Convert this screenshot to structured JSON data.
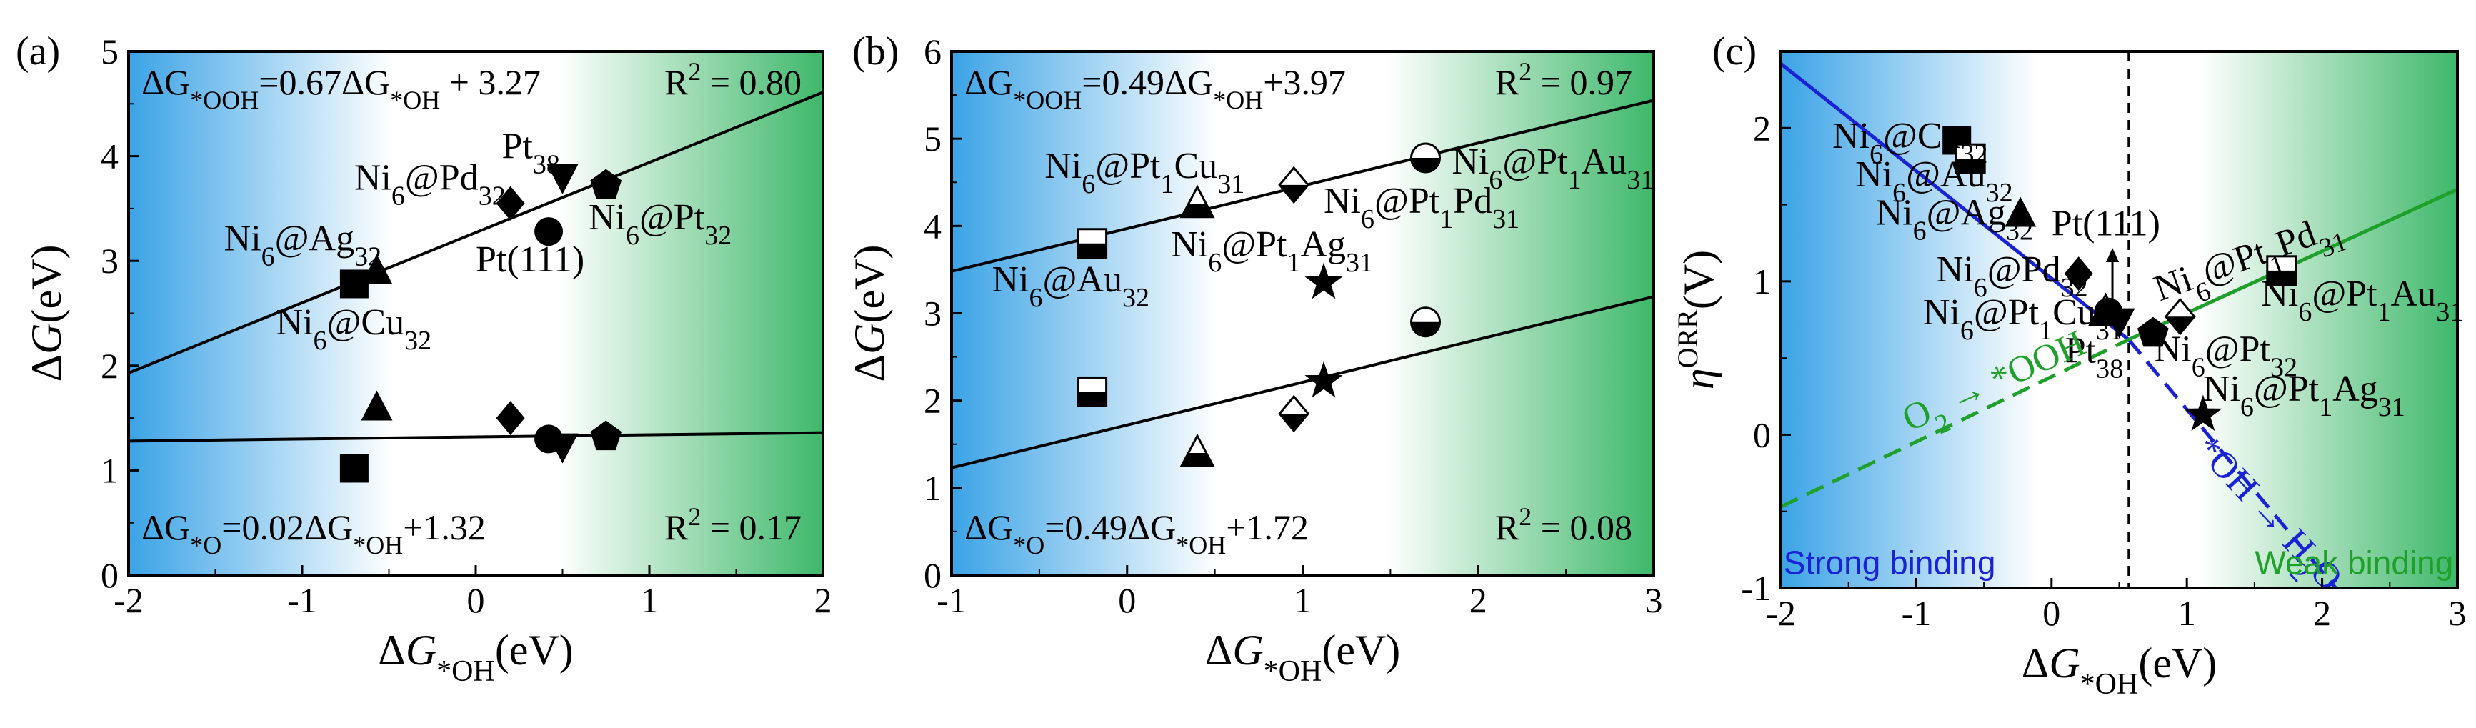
{
  "colors": {
    "blue": "#3ba3e6",
    "green": "#3eb86a",
    "blue_line": "#1a22d6",
    "green_line": "#1fa02a"
  },
  "chart_data": [
    {
      "id": "a",
      "panel_label": "(a)",
      "type": "scatter",
      "xlim": [
        -2,
        2
      ],
      "ylim": [
        0,
        5
      ],
      "xticks": [
        -2,
        -1,
        0,
        1,
        2
      ],
      "yticks": [
        0,
        1,
        2,
        3,
        4,
        5
      ],
      "xlabel": {
        "main": "ΔG",
        "sub": "*OH",
        "unit": "(eV)"
      },
      "ylabel": {
        "main": "ΔG",
        "unit": "(eV)"
      },
      "equations": [
        {
          "pre": "ΔG",
          "sub1": "*OOH",
          "mid": "=0.67ΔG",
          "sub2": "*OH",
          "post": " + 3.27",
          "r2": "R",
          "r2sup": "2",
          "r2val": " = 0.80"
        },
        {
          "pre": "ΔG",
          "sub1": "*O",
          "mid": "=0.02ΔG",
          "sub2": "*OH",
          "post": "+1.32",
          "r2": "R",
          "r2sup": "2",
          "r2val": " = 0.17"
        }
      ],
      "fits": [
        {
          "slope": 0.67,
          "intercept": 3.27
        },
        {
          "slope": 0.02,
          "intercept": 1.32
        }
      ],
      "series": [
        {
          "name": "Ni6@Cu32",
          "marker": "square",
          "points": [
            [
              -0.7,
              2.78
            ],
            [
              -0.7,
              1.02
            ]
          ]
        },
        {
          "name": "Ni6@Ag32",
          "marker": "triangle",
          "points": [
            [
              -0.57,
              2.9
            ],
            [
              -0.57,
              1.6
            ]
          ]
        },
        {
          "name": "Ni6@Pd32",
          "marker": "diamond",
          "points": [
            [
              0.2,
              3.55
            ],
            [
              0.2,
              1.5
            ]
          ]
        },
        {
          "name": "Pt(111)",
          "marker": "circle",
          "points": [
            [
              0.42,
              3.28
            ],
            [
              0.42,
              1.3
            ]
          ]
        },
        {
          "name": "Pt38",
          "marker": "triangle-down",
          "points": [
            [
              0.5,
              3.8
            ],
            [
              0.5,
              1.23
            ]
          ]
        },
        {
          "name": "Ni6@Pt32",
          "marker": "pentagon",
          "points": [
            [
              0.75,
              3.72
            ],
            [
              0.75,
              1.32
            ]
          ]
        }
      ],
      "point_labels": [
        {
          "base": "Ni",
          "parts": [
            [
              "6",
              1
            ],
            [
              "@Ag",
              0
            ],
            [
              "32",
              1
            ]
          ],
          "at": [
            -1.45,
            3.1
          ]
        },
        {
          "base": "Ni",
          "parts": [
            [
              "6",
              1
            ],
            [
              "@Cu",
              0
            ],
            [
              "32",
              1
            ]
          ],
          "at": [
            -1.15,
            2.3
          ]
        },
        {
          "base": "Ni",
          "parts": [
            [
              "6",
              1
            ],
            [
              "@Pd",
              0
            ],
            [
              "32",
              1
            ]
          ],
          "at": [
            -0.7,
            3.68
          ]
        },
        {
          "base": "Pt",
          "parts": [
            [
              "38",
              1
            ]
          ],
          "at": [
            0.15,
            3.98
          ]
        },
        {
          "base": "Pt(111)",
          "parts": [],
          "at": [
            0.0,
            2.9
          ]
        },
        {
          "base": "Ni",
          "parts": [
            [
              "6",
              1
            ],
            [
              "@Pt",
              0
            ],
            [
              "32",
              1
            ]
          ],
          "at": [
            0.65,
            3.3
          ]
        }
      ]
    },
    {
      "id": "b",
      "panel_label": "(b)",
      "type": "scatter",
      "xlim": [
        -1,
        3
      ],
      "ylim": [
        0,
        6
      ],
      "xticks": [
        -1,
        0,
        1,
        2,
        3
      ],
      "yticks": [
        0,
        1,
        2,
        3,
        4,
        5,
        6
      ],
      "xlabel": {
        "main": "ΔG",
        "sub": "*OH",
        "unit": "(eV)"
      },
      "ylabel": {
        "main": "ΔG",
        "unit": "(eV)"
      },
      "equations": [
        {
          "pre": "ΔG",
          "sub1": "*OOH",
          "mid": "=0.49ΔG",
          "sub2": "*OH",
          "post": "+3.97",
          "r2": "R",
          "r2sup": "2",
          "r2val": " = 0.97"
        },
        {
          "pre": "ΔG",
          "sub1": "*O",
          "mid": "=0.49ΔG",
          "sub2": "*OH",
          "post": "+1.72",
          "r2": "R",
          "r2sup": "2",
          "r2val": " = 0.08"
        }
      ],
      "fits": [
        {
          "slope": 0.49,
          "intercept": 3.97
        },
        {
          "slope": 0.49,
          "intercept": 1.72
        }
      ],
      "series": [
        {
          "name": "Ni6@Au32",
          "marker": "square-half",
          "points": [
            [
              -0.2,
              3.8
            ],
            [
              -0.2,
              2.1
            ]
          ]
        },
        {
          "name": "Ni6@Pt1Cu31",
          "marker": "triangle-half",
          "points": [
            [
              0.4,
              4.25
            ],
            [
              0.4,
              1.4
            ]
          ]
        },
        {
          "name": "Ni6@Pt1Ag31",
          "marker": "star",
          "points": [
            [
              1.12,
              3.35
            ],
            [
              1.12,
              2.22
            ]
          ]
        },
        {
          "name": "Ni6@Pt1Pd31",
          "marker": "diamond-half",
          "points": [
            [
              0.95,
              4.47
            ],
            [
              0.95,
              1.85
            ]
          ]
        },
        {
          "name": "Ni6@Pt1Au31",
          "marker": "circle-half",
          "points": [
            [
              1.7,
              4.78
            ],
            [
              1.7,
              2.9
            ]
          ]
        }
      ],
      "point_labels": [
        {
          "base": "Ni",
          "parts": [
            [
              "6",
              1
            ],
            [
              "@Pt",
              0
            ],
            [
              "1",
              1
            ],
            [
              "Cu",
              0
            ],
            [
              "31",
              1
            ]
          ],
          "at": [
            -0.47,
            4.55
          ]
        },
        {
          "base": "Ni",
          "parts": [
            [
              "6",
              1
            ],
            [
              "@Au",
              0
            ],
            [
              "32",
              1
            ]
          ],
          "at": [
            -0.77,
            3.25
          ]
        },
        {
          "base": "Ni",
          "parts": [
            [
              "6",
              1
            ],
            [
              "@Pt",
              0
            ],
            [
              "1",
              1
            ],
            [
              "Ag",
              0
            ],
            [
              "31",
              1
            ]
          ],
          "at": [
            0.25,
            3.65
          ]
        },
        {
          "base": "Ni",
          "parts": [
            [
              "6",
              1
            ],
            [
              "@Pt",
              0
            ],
            [
              "1",
              1
            ],
            [
              "Pd",
              0
            ],
            [
              "31",
              1
            ]
          ],
          "at": [
            1.12,
            4.15
          ]
        },
        {
          "base": "Ni",
          "parts": [
            [
              "6",
              1
            ],
            [
              "@Pt",
              0
            ],
            [
              "1",
              1
            ],
            [
              "Au",
              0
            ],
            [
              "31",
              1
            ]
          ],
          "at": [
            1.85,
            4.6
          ]
        }
      ]
    },
    {
      "id": "c",
      "panel_label": "(c)",
      "type": "scatter",
      "xlim": [
        -2,
        3
      ],
      "ylim": [
        -1,
        2.5
      ],
      "xticks": [
        -2,
        -1,
        0,
        1,
        2,
        3
      ],
      "yticks": [
        -1,
        0,
        1,
        2
      ],
      "xlabel": {
        "main": "ΔG",
        "sub": "*OH",
        "unit": "(eV)"
      },
      "ylabel": {
        "main": "η",
        "sup": "ORR",
        "unit": "(V)"
      },
      "vline_x": 0.57,
      "lines": [
        {
          "name": "*OH → H2O",
          "color": "blue",
          "points": [
            [
              -2.4,
              2.7
            ],
            [
              0.57,
              0.62
            ]
          ],
          "dash_points": [
            [
              0.57,
              0.62
            ],
            [
              2.1,
              -1.0
            ]
          ]
        },
        {
          "name": "O2 → *OOH",
          "color": "green",
          "points": [
            [
              0.57,
              0.62
            ],
            [
              3.0,
              1.6
            ]
          ],
          "dash_points": [
            [
              -2.0,
              -0.47
            ],
            [
              0.57,
              0.62
            ]
          ]
        }
      ],
      "series": [
        {
          "name": "Ni6@Cu32",
          "marker": "square",
          "points": [
            [
              -0.7,
              1.92
            ]
          ]
        },
        {
          "name": "Ni6@Au32",
          "marker": "square-half",
          "points": [
            [
              -0.6,
              1.8
            ]
          ]
        },
        {
          "name": "Ni6@Ag32",
          "marker": "triangle",
          "points": [
            [
              -0.23,
              1.44
            ]
          ]
        },
        {
          "name": "Ni6@Pd32",
          "marker": "diamond",
          "points": [
            [
              0.2,
              1.05
            ]
          ]
        },
        {
          "name": "Ni6@Pt1Cu31",
          "marker": "triangle-half",
          "points": [
            [
              0.4,
              0.8
            ]
          ]
        },
        {
          "name": "Pt38",
          "marker": "triangle-down",
          "points": [
            [
              0.5,
              0.74
            ]
          ]
        },
        {
          "name": "Pt(111)",
          "marker": "circle",
          "points": [
            [
              0.42,
              0.8
            ]
          ]
        },
        {
          "name": "Ni6@Pt32",
          "marker": "pentagon",
          "points": [
            [
              0.75,
              0.66
            ]
          ]
        },
        {
          "name": "Ni6@Pt1Pd31",
          "marker": "diamond-half",
          "points": [
            [
              0.95,
              0.77
            ]
          ]
        },
        {
          "name": "Ni6@Pt1Au31",
          "marker": "square-half",
          "points": [
            [
              1.7,
              1.07
            ]
          ]
        },
        {
          "name": "Ni6@Pt1Ag31",
          "marker": "star",
          "points": [
            [
              1.12,
              0.13
            ]
          ]
        }
      ],
      "point_labels": [
        {
          "base": "Ni",
          "parts": [
            [
              "6",
              1
            ],
            [
              "@Cu",
              0
            ],
            [
              "32",
              1
            ]
          ],
          "at": [
            -1.62,
            1.87
          ]
        },
        {
          "base": "Ni",
          "parts": [
            [
              "6",
              1
            ],
            [
              "@Au",
              0
            ],
            [
              "32",
              1
            ]
          ],
          "at": [
            -1.45,
            1.62
          ]
        },
        {
          "base": "Ni",
          "parts": [
            [
              "6",
              1
            ],
            [
              "@Ag",
              0
            ],
            [
              "32",
              1
            ]
          ],
          "at": [
            -1.3,
            1.37
          ]
        },
        {
          "base": "Pt(111)",
          "parts": [],
          "at": [
            0.0,
            1.3
          ]
        },
        {
          "base": "Ni",
          "parts": [
            [
              "6",
              1
            ],
            [
              "@Pd",
              0
            ],
            [
              "32",
              1
            ]
          ],
          "at": [
            -0.85,
            1.0
          ]
        },
        {
          "base": "Ni",
          "parts": [
            [
              "6",
              1
            ],
            [
              "@Pt",
              0
            ],
            [
              "1",
              1
            ],
            [
              "Cu",
              0
            ],
            [
              "31",
              1
            ]
          ],
          "at": [
            -0.95,
            0.72
          ]
        },
        {
          "base": "Pt",
          "parts": [
            [
              "38",
              1
            ]
          ],
          "at": [
            0.1,
            0.47
          ]
        },
        {
          "base": "Ni",
          "parts": [
            [
              "6",
              1
            ],
            [
              "@Pt",
              0
            ],
            [
              "32",
              1
            ]
          ],
          "at": [
            0.76,
            0.48
          ]
        },
        {
          "base": "Ni",
          "parts": [
            [
              "6",
              1
            ],
            [
              "@Pt",
              0
            ],
            [
              "1",
              1
            ],
            [
              "Ag",
              0
            ],
            [
              "31",
              1
            ]
          ],
          "at": [
            1.12,
            0.22
          ]
        },
        {
          "base": "Ni",
          "parts": [
            [
              "6",
              1
            ],
            [
              "@Pt",
              0
            ],
            [
              "1",
              1
            ],
            [
              "Au",
              0
            ],
            [
              "31",
              1
            ]
          ],
          "at": [
            1.55,
            0.84
          ]
        }
      ],
      "rotated_labels": [
        {
          "pre": "O",
          "sub": "2",
          "post": " → *OOH",
          "color": "green",
          "at": [
            -1.05,
            0.02
          ],
          "angle": -24
        },
        {
          "pre": "*OH → H",
          "sub": "2",
          "post": "O",
          "color": "blue",
          "at": [
            1.05,
            -0.1
          ],
          "angle": 47
        }
      ],
      "pt1pd31_label": {
        "base": "Ni",
        "parts": [
          [
            "6",
            1
          ],
          [
            "@Pt",
            0
          ],
          [
            "1",
            1
          ],
          [
            "Pd",
            0
          ],
          [
            "31",
            1
          ]
        ],
        "at": [
          0.8,
          0.87
        ],
        "angle": -20
      },
      "region_labels": [
        {
          "text": "Strong binding",
          "color": "blue_line",
          "at": [
            -1.98,
            -0.91
          ]
        },
        {
          "text": "Weak binding",
          "color": "green_line",
          "at": [
            2.97,
            -0.91
          ]
        }
      ]
    }
  ]
}
